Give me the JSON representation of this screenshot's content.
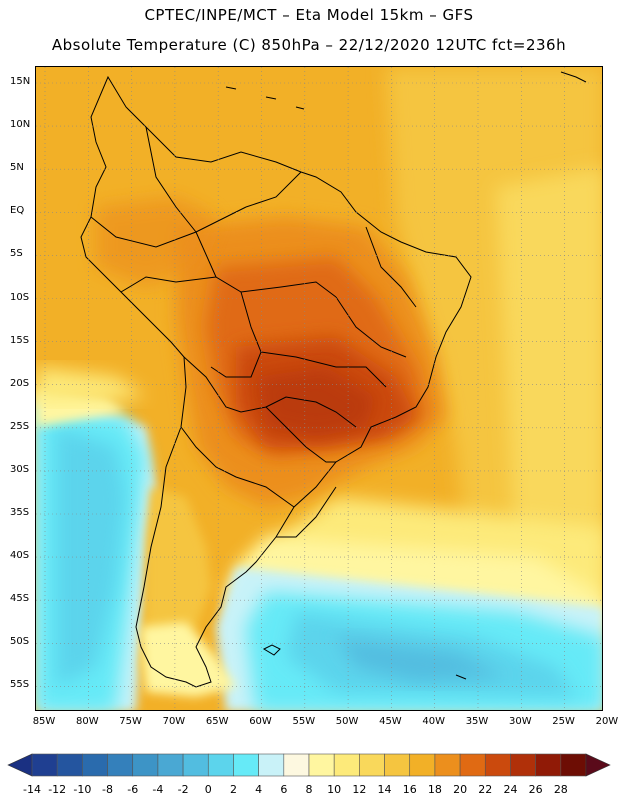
{
  "header": {
    "line1": "CPTEC/INPE/MCT –  Eta Model 15km – GFS",
    "line2": "Absolute Temperature (C) 850hPa – 22/12/2020 12UTC fct=236h"
  },
  "lat_labels": [
    "15N",
    "10N",
    "5N",
    "EQ",
    "5S",
    "10S",
    "15S",
    "20S",
    "25S",
    "30S",
    "35S",
    "40S",
    "45S",
    "50S",
    "55S"
  ],
  "lon_labels": [
    "85W",
    "80W",
    "75W",
    "70W",
    "65W",
    "60W",
    "55W",
    "50W",
    "45W",
    "40W",
    "35W",
    "30W",
    "25W",
    "20W"
  ],
  "colorbar": {
    "labels": [
      "-14",
      "-12",
      "-10",
      "-8",
      "-6",
      "-4",
      "-2",
      "0",
      "2",
      "4",
      "6",
      "8",
      "10",
      "12",
      "14",
      "16",
      "18",
      "20",
      "22",
      "24",
      "26",
      "28"
    ],
    "colors": [
      "#1f3f91",
      "#24559f",
      "#2a6bad",
      "#3480bb",
      "#3d94c6",
      "#4aa8d3",
      "#52bde0",
      "#5cd4ec",
      "#66eaf7",
      "#c9f2f8",
      "#fdf8e0",
      "#fff6a0",
      "#fdea7a",
      "#f9d85b",
      "#f5c540",
      "#f2b027",
      "#ec8f1d",
      "#e06a13",
      "#cb4a0d",
      "#b03009",
      "#901a06",
      "#6d0d04"
    ],
    "low_color": "#1a3082",
    "high_color": "#5a0a1a"
  }
}
